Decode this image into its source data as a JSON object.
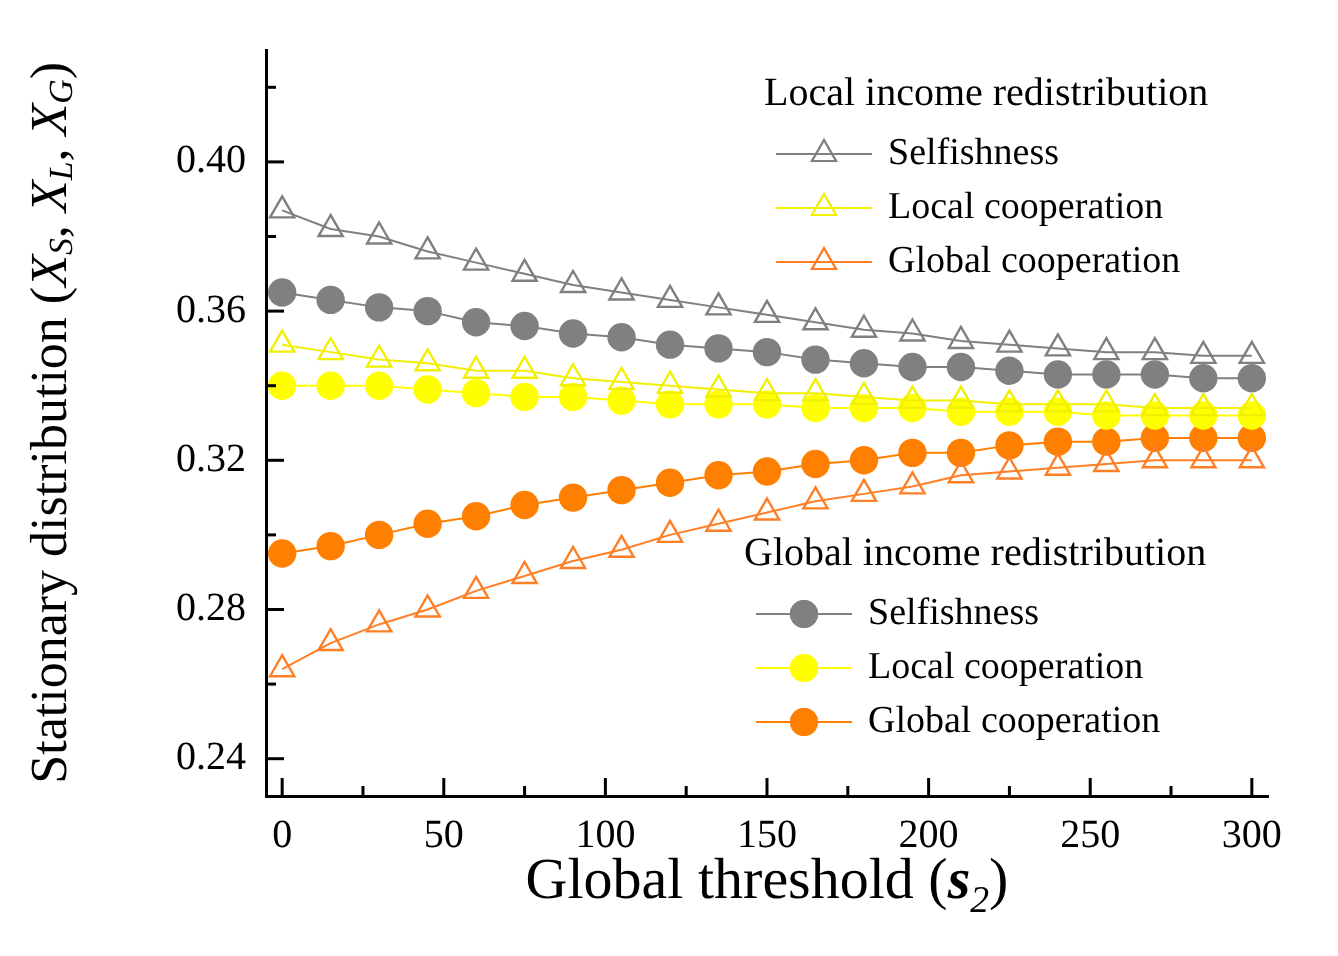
{
  "chart_data": {
    "type": "line",
    "xlabel": "Global threshold (s$_{2}$)",
    "ylabel": "Stationary distribution (X$_{S}$, X$_{L}$, X$_{G}$)",
    "legend_title": [
      "Local income redistribution",
      "Global income redistribution"
    ],
    "legend": "right",
    "x": [
      0,
      15,
      30,
      45,
      60,
      75,
      90,
      105,
      120,
      135,
      150,
      165,
      180,
      195,
      210,
      225,
      240,
      255,
      270,
      285,
      300
    ],
    "xlim": [
      -5,
      305
    ],
    "xticks": [
      0,
      {
        "value": 25,
        "label": null
      },
      50,
      {
        "value": 75,
        "label": null
      },
      100,
      {
        "value": 125,
        "label": null
      },
      150,
      {
        "value": 175,
        "label": null
      },
      200,
      {
        "value": 225,
        "label": null
      },
      250,
      {
        "value": 275,
        "label": null
      },
      300
    ],
    "ylim": [
      0.23,
      0.43
    ],
    "yticks": [
      {
        "value": 0.24,
        "label": "0.24"
      },
      {
        "value": 0.26,
        "label": null
      },
      {
        "value": 0.28,
        "label": "0.28"
      },
      {
        "value": 0.3,
        "label": null
      },
      {
        "value": 0.32,
        "label": "0.32"
      },
      {
        "value": 0.34,
        "label": null
      },
      {
        "value": 0.36,
        "label": "0.36"
      },
      {
        "value": 0.38,
        "label": null
      },
      {
        "value": 0.4,
        "label": "0.40"
      },
      {
        "value": 0.42,
        "label": null
      }
    ],
    "series": [
      {
        "name": "Selfishness",
        "color": "#808080",
        "marker": "triangle",
        "values": [
          0.387,
          0.382,
          0.38,
          0.376,
          0.373,
          0.37,
          0.367,
          0.365,
          0.363,
          0.361,
          0.359,
          0.357,
          0.355,
          0.354,
          0.352,
          0.351,
          0.35,
          0.349,
          0.349,
          0.348,
          0.348
        ]
      },
      {
        "name": "Local cooperation",
        "color": "#f0f000",
        "marker": "triangle",
        "values": [
          0.351,
          0.349,
          0.347,
          0.346,
          0.344,
          0.344,
          0.342,
          0.341,
          0.34,
          0.339,
          0.338,
          0.338,
          0.337,
          0.336,
          0.336,
          0.335,
          0.335,
          0.335,
          0.334,
          0.334,
          0.334
        ]
      },
      {
        "name": "Global cooperation",
        "color": "#ff7f27",
        "marker": "triangle",
        "values": [
          0.264,
          0.271,
          0.276,
          0.28,
          0.285,
          0.289,
          0.293,
          0.296,
          0.3,
          0.303,
          0.306,
          0.309,
          0.311,
          0.313,
          0.316,
          0.317,
          0.318,
          0.319,
          0.32,
          0.32,
          0.32
        ]
      },
      {
        "name": "Selfishness",
        "color": "#808080",
        "marker": "circle",
        "values": [
          0.365,
          0.363,
          0.361,
          0.36,
          0.357,
          0.356,
          0.354,
          0.353,
          0.351,
          0.35,
          0.349,
          0.347,
          0.346,
          0.345,
          0.345,
          0.344,
          0.343,
          0.343,
          0.343,
          0.342,
          0.342
        ]
      },
      {
        "name": "Local cooperation",
        "color": "#ffff00",
        "marker": "circle",
        "values": [
          0.34,
          0.34,
          0.34,
          0.339,
          0.338,
          0.337,
          0.337,
          0.336,
          0.335,
          0.335,
          0.335,
          0.334,
          0.334,
          0.334,
          0.333,
          0.333,
          0.333,
          0.332,
          0.332,
          0.332,
          0.332
        ]
      },
      {
        "name": "Global cooperation",
        "color": "#ff7f00",
        "marker": "circle",
        "values": [
          0.295,
          0.297,
          0.3,
          0.303,
          0.305,
          0.308,
          0.31,
          0.312,
          0.314,
          0.316,
          0.317,
          0.319,
          0.32,
          0.322,
          0.322,
          0.324,
          0.325,
          0.325,
          0.326,
          0.326,
          0.326
        ]
      }
    ]
  }
}
